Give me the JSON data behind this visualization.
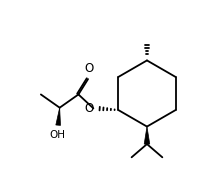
{
  "background": "#ffffff",
  "line_color": "#000000",
  "lw": 1.3,
  "font_size": 7.5,
  "figsize": [
    2.15,
    1.87
  ],
  "dpi": 100,
  "xlim": [
    0,
    10
  ],
  "ylim": [
    0,
    8.7
  ]
}
